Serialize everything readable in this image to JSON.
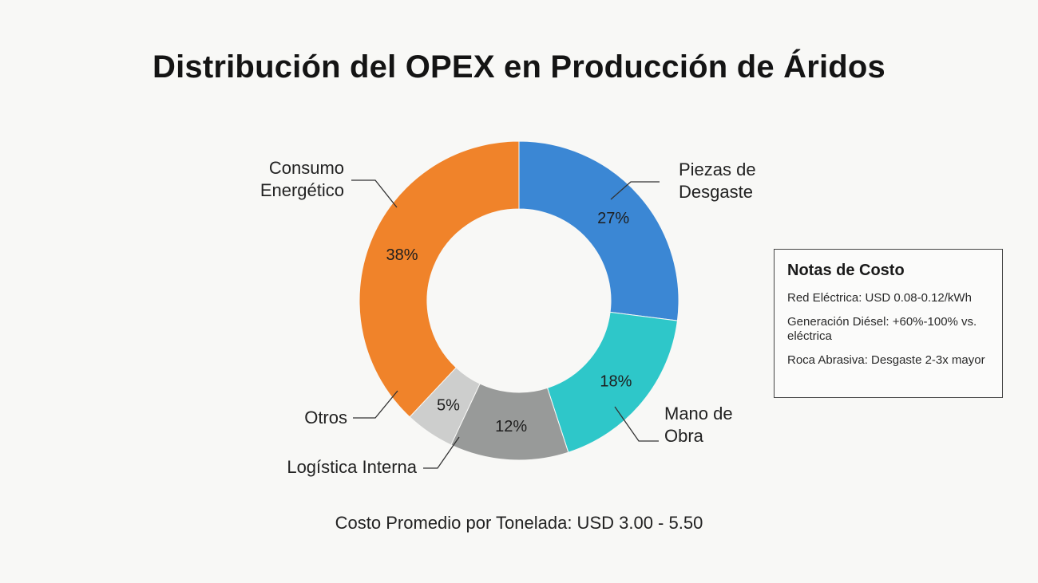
{
  "title": "Distribución del OPEX en Producción de Áridos",
  "chart_data": {
    "type": "pie",
    "subtype": "donut",
    "title": "Distribución del OPEX en Producción de Áridos",
    "unit": "%",
    "slices": [
      {
        "label": "Piezas de Desgaste",
        "label_lines": [
          "Piezas de",
          "Desgaste"
        ],
        "value": 27,
        "value_label": "27%",
        "color": "#3b87d4"
      },
      {
        "label": "Mano de Obra",
        "label_lines": [
          "Mano de",
          "Obra"
        ],
        "value": 18,
        "value_label": "18%",
        "color": "#2ec7c9"
      },
      {
        "label": "Logística Interna",
        "label_lines": [
          "Logística Interna"
        ],
        "value": 12,
        "value_label": "12%",
        "color": "#989a99"
      },
      {
        "label": "Otros",
        "label_lines": [
          "Otros"
        ],
        "value": 5,
        "value_label": "5%",
        "color": "#cdcecd"
      },
      {
        "label": "Consumo Energético",
        "label_lines": [
          "Consumo",
          "Energético"
        ],
        "value": 38,
        "value_label": "38%",
        "color": "#f0832a"
      }
    ]
  },
  "notes": {
    "title": "Notas de Costo",
    "items": [
      "Red Eléctrica: USD 0.08-0.12/kWh",
      "Generación Diésel: +60%-100% vs. eléctrica",
      "Roca Abrasiva: Desgaste 2-3x mayor"
    ]
  },
  "footer": "Costo Promedio por Tonelada: USD 3.00 - 5.50"
}
